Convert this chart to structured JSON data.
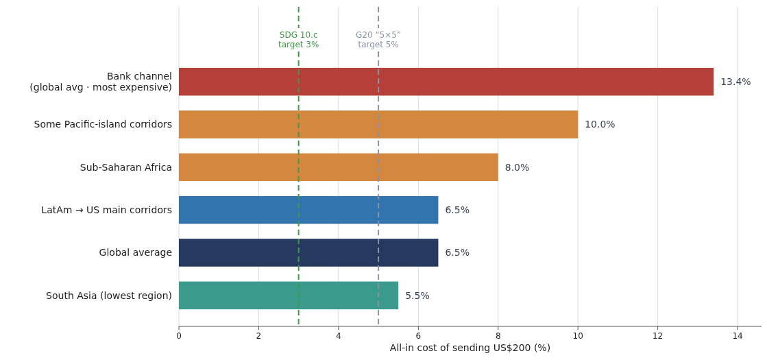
{
  "chart_data": {
    "type": "bar",
    "orientation": "horizontal",
    "xlabel": "All-in cost of sending US$200 (%)",
    "categories": [
      "Bank channel\n(global avg · most expensive)",
      "Some Pacific-island corridors",
      "Sub-Saharan Africa",
      "LatAm → US main corridors",
      "Global average",
      "South Asia (lowest region)"
    ],
    "values": [
      13.4,
      10.0,
      8.0,
      6.5,
      6.5,
      5.5
    ],
    "colors": [
      "#b5403a",
      "#d4873f",
      "#d4873f",
      "#3274ae",
      "#253a5e",
      "#3a9a8c"
    ],
    "value_labels": [
      "13.4%",
      "10.0%",
      "8.0%",
      "6.5%",
      "6.5%",
      "5.5%"
    ],
    "xlim": [
      0,
      14.6
    ],
    "xticks": [
      0,
      2,
      4,
      6,
      8,
      10,
      12,
      14
    ],
    "grid": "x",
    "ref_lines": [
      {
        "axis": "x",
        "value": 3,
        "label": "SDG 10.c\ntarget 3%",
        "color": "#3f9a4a",
        "line_style": "dashed"
      },
      {
        "axis": "x",
        "value": 5,
        "label": "G20 “5×5”\ntarget 5%",
        "color": "#8a93a6",
        "line_style": "dashed"
      }
    ]
  }
}
